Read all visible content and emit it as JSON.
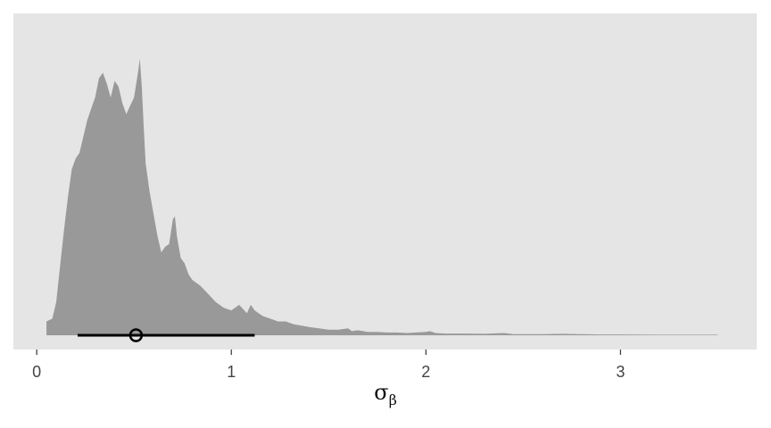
{
  "chart_data": {
    "type": "area",
    "title": "",
    "xlabel": "σ",
    "xlabel_subscript": "β",
    "ylabel": "",
    "xlim": [
      -0.12,
      3.7
    ],
    "xticks": [
      {
        "value": 0,
        "label": "0"
      },
      {
        "value": 1,
        "label": "1"
      },
      {
        "value": 2,
        "label": "2"
      },
      {
        "value": 3,
        "label": "3"
      }
    ],
    "grid": false,
    "legend": "none",
    "colors": {
      "panel_background": "#e5e5e5",
      "density_fill": "#999999",
      "interval_line": "#000000",
      "tick_text": "#444444"
    },
    "density": {
      "x": [
        0.05,
        0.08,
        0.1,
        0.12,
        0.14,
        0.16,
        0.18,
        0.2,
        0.22,
        0.24,
        0.26,
        0.28,
        0.3,
        0.32,
        0.34,
        0.36,
        0.38,
        0.4,
        0.42,
        0.44,
        0.46,
        0.48,
        0.5,
        0.52,
        0.53,
        0.54,
        0.55,
        0.56,
        0.58,
        0.6,
        0.62,
        0.64,
        0.66,
        0.68,
        0.7,
        0.71,
        0.72,
        0.74,
        0.76,
        0.78,
        0.8,
        0.84,
        0.88,
        0.92,
        0.96,
        1.0,
        1.04,
        1.08,
        1.1,
        1.12,
        1.16,
        1.2,
        1.24,
        1.28,
        1.32,
        1.36,
        1.4,
        1.45,
        1.5,
        1.55,
        1.6,
        1.62,
        1.65,
        1.7,
        1.75,
        1.8,
        1.85,
        1.9,
        1.95,
        2.0,
        2.02,
        2.05,
        2.1,
        2.2,
        2.3,
        2.4,
        2.45,
        2.5,
        2.6,
        2.7,
        2.8,
        2.9,
        3.0,
        3.2,
        3.4,
        3.5
      ],
      "y": [
        0.05,
        0.06,
        0.12,
        0.25,
        0.38,
        0.5,
        0.6,
        0.64,
        0.66,
        0.72,
        0.78,
        0.82,
        0.86,
        0.93,
        0.95,
        0.91,
        0.86,
        0.92,
        0.9,
        0.84,
        0.8,
        0.83,
        0.86,
        0.95,
        1.0,
        0.9,
        0.75,
        0.62,
        0.52,
        0.44,
        0.36,
        0.3,
        0.32,
        0.33,
        0.42,
        0.43,
        0.36,
        0.28,
        0.26,
        0.22,
        0.2,
        0.18,
        0.15,
        0.12,
        0.1,
        0.09,
        0.11,
        0.08,
        0.11,
        0.09,
        0.07,
        0.06,
        0.05,
        0.05,
        0.04,
        0.035,
        0.03,
        0.025,
        0.02,
        0.02,
        0.025,
        0.015,
        0.018,
        0.012,
        0.012,
        0.01,
        0.01,
        0.008,
        0.01,
        0.012,
        0.015,
        0.008,
        0.006,
        0.006,
        0.005,
        0.008,
        0.004,
        0.004,
        0.004,
        0.005,
        0.004,
        0.003,
        0.003,
        0.002,
        0.002,
        0.002
      ]
    },
    "interval": {
      "low": 0.21,
      "high": 1.12,
      "point": 0.51
    }
  }
}
